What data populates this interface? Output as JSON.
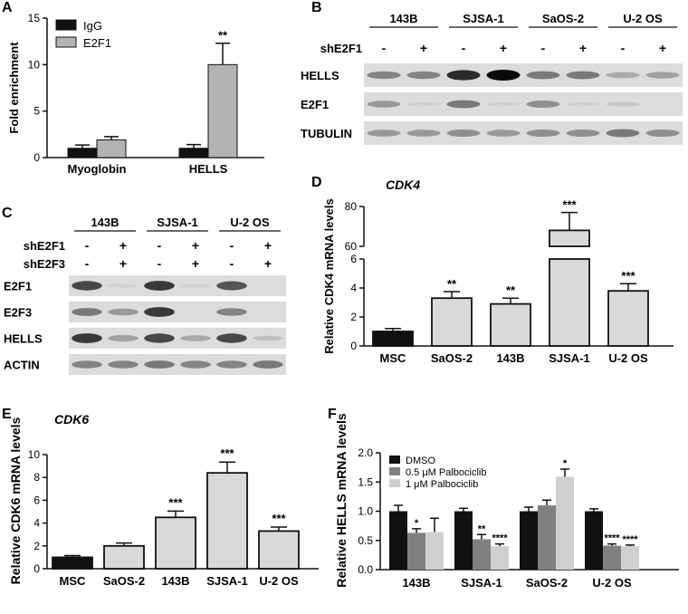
{
  "figure": {
    "panels": {
      "A": {
        "letter": "A",
        "chart_data": {
          "type": "bar",
          "categories": [
            "Myoglobin",
            "HELLS"
          ],
          "series": [
            {
              "name": "IgG",
              "values": [
                1.0,
                1.0
              ],
              "errors": [
                0.35,
                0.4
              ],
              "color": "#111111"
            },
            {
              "name": "E2F1",
              "values": [
                1.9,
                10.0
              ],
              "errors": [
                0.35,
                2.3
              ],
              "color": "#b3b3b3"
            }
          ],
          "significance": [
            "",
            "**"
          ],
          "ylabel": "Fold enrichment",
          "ylim": [
            0,
            15
          ],
          "yticks": [
            0,
            5,
            10,
            15
          ],
          "legend": "top-left"
        }
      },
      "B": {
        "letter": "B",
        "groups": [
          "143B",
          "SJSA-1",
          "SaOS-2",
          "U-2 OS"
        ],
        "treatment_rows": [
          {
            "label": "shE2F1",
            "values": [
              "-",
              "+",
              "-",
              "+",
              "-",
              "+",
              "-",
              "+"
            ]
          }
        ],
        "bands": [
          {
            "label": "HELLS",
            "intensity": [
              0.55,
              0.55,
              0.9,
              1.0,
              0.6,
              0.6,
              0.35,
              0.4
            ]
          },
          {
            "label": "E2F1",
            "intensity": [
              0.45,
              0.05,
              0.6,
              0.05,
              0.5,
              0.05,
              0.15,
              0.0
            ]
          },
          {
            "label": "TUBULIN",
            "intensity": [
              0.45,
              0.45,
              0.5,
              0.45,
              0.5,
              0.5,
              0.6,
              0.5
            ]
          }
        ]
      },
      "C": {
        "letter": "C",
        "groups": [
          "143B",
          "SJSA-1",
          "U-2 OS"
        ],
        "treatment_rows": [
          {
            "label": "shE2F1",
            "values": [
              "-",
              "+",
              "-",
              "+",
              "-",
              "+"
            ]
          },
          {
            "label": "shE2F3",
            "values": [
              "-",
              "+",
              "-",
              "+",
              "-",
              "+"
            ]
          }
        ],
        "bands": [
          {
            "label": "E2F1",
            "intensity": [
              0.8,
              0.05,
              0.85,
              0.05,
              0.75,
              0.0
            ]
          },
          {
            "label": "E2F3",
            "intensity": [
              0.6,
              0.45,
              0.85,
              0.0,
              0.55,
              0.0
            ]
          },
          {
            "label": "HELLS",
            "intensity": [
              0.85,
              0.4,
              0.8,
              0.35,
              0.8,
              0.2
            ]
          },
          {
            "label": "ACTIN",
            "intensity": [
              0.55,
              0.55,
              0.6,
              0.55,
              0.55,
              0.6
            ]
          }
        ]
      },
      "D": {
        "letter": "D",
        "gene": "CDK4",
        "chart_data": {
          "type": "bar",
          "categories": [
            "MSC",
            "SaOS-2",
            "143B",
            "SJSA-1",
            "U-2 OS"
          ],
          "values": [
            1.0,
            3.3,
            2.9,
            68,
            3.8
          ],
          "errors": [
            0.2,
            0.45,
            0.4,
            9,
            0.5
          ],
          "colors": [
            "#111111",
            "#d9d9d9",
            "#d9d9d9",
            "#d9d9d9",
            "#d9d9d9"
          ],
          "significance": [
            "",
            "**",
            "**",
            "***",
            "***"
          ],
          "ylabel": "Relative CDK4 mRNA levels",
          "broken_axis": {
            "lower": [
              0,
              6
            ],
            "upper": [
              60,
              80
            ]
          },
          "yticks_lower": [
            0,
            2,
            4,
            6
          ],
          "yticks_upper": [
            60,
            80
          ]
        }
      },
      "E": {
        "letter": "E",
        "gene": "CDK6",
        "chart_data": {
          "type": "bar",
          "categories": [
            "MSC",
            "SaOS-2",
            "143B",
            "SJSA-1",
            "U-2 OS"
          ],
          "values": [
            1.0,
            2.0,
            4.5,
            8.4,
            3.3
          ],
          "errors": [
            0.15,
            0.25,
            0.55,
            0.95,
            0.35
          ],
          "colors": [
            "#111111",
            "#d9d9d9",
            "#d9d9d9",
            "#d9d9d9",
            "#d9d9d9"
          ],
          "significance": [
            "",
            "",
            "***",
            "***",
            "***"
          ],
          "ylabel": "Relative CDK6 mRNA levels",
          "ylim": [
            0,
            10
          ],
          "yticks": [
            0,
            2,
            4,
            6,
            8,
            10
          ]
        }
      },
      "F": {
        "letter": "F",
        "chart_data": {
          "type": "bar",
          "categories": [
            "143B",
            "SJSA-1",
            "SaOS-2",
            "U-2 OS"
          ],
          "series": [
            {
              "name": "DMSO",
              "values": [
                1.0,
                1.0,
                1.0,
                1.0
              ],
              "errors": [
                0.1,
                0.05,
                0.07,
                0.04
              ],
              "color": "#111111"
            },
            {
              "name": "0.5 μM Palbociclib",
              "values": [
                0.63,
                0.52,
                1.1,
                0.41
              ],
              "errors": [
                0.07,
                0.08,
                0.09,
                0.03
              ],
              "color": "#808080"
            },
            {
              "name": "1 μM Palbociclib",
              "values": [
                0.64,
                0.4,
                1.59,
                0.4
              ],
              "errors": [
                0.24,
                0.04,
                0.13,
                0.02
              ],
              "color": "#cfcfcf"
            }
          ],
          "significance": [
            [
              "",
              "*",
              ""
            ],
            [
              "",
              "**",
              "****"
            ],
            [
              "",
              "",
              "*"
            ],
            [
              "",
              "****",
              "****"
            ]
          ],
          "ylabel": "Relative HELLS mRNA levels",
          "ylim": [
            0,
            2.0
          ],
          "yticks": [
            0.0,
            0.5,
            1.0,
            1.5,
            2.0
          ],
          "legend": "top-left"
        }
      }
    }
  }
}
